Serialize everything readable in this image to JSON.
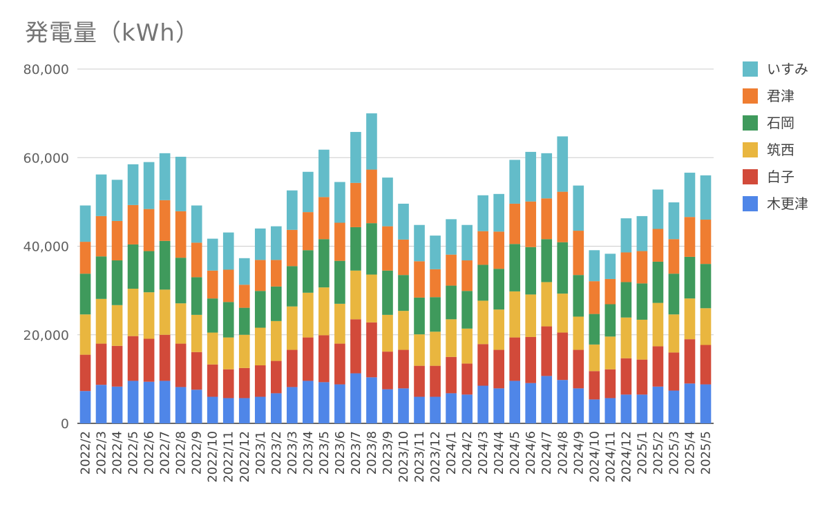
{
  "chart_data": {
    "type": "bar",
    "stacked": true,
    "title": "発電量（kWh）",
    "ylim": [
      0,
      80000
    ],
    "yticks": [
      "0",
      "20,000",
      "40,000",
      "60,000",
      "80,000"
    ],
    "ytick_values": [
      0,
      20000,
      40000,
      60000,
      80000
    ],
    "grid": true,
    "legend_position": "right",
    "categories": [
      "2022/2",
      "2022/3",
      "2022/4",
      "2022/5",
      "2022/6",
      "2022/7",
      "2022/8",
      "2022/9",
      "2022/10",
      "2022/11",
      "2022/12",
      "2023/1",
      "2023/2",
      "2023/3",
      "2023/4",
      "2023/5",
      "2023/6",
      "2023/7",
      "2023/8",
      "2023/9",
      "2023/10",
      "2023/11",
      "2023/12",
      "2024/1",
      "2024/2",
      "2024/3",
      "2024/4",
      "2024/5",
      "2024/6",
      "2024/7",
      "2024/8",
      "2024/9",
      "2024/10",
      "2024/11",
      "2024/12",
      "2025/1",
      "2025/2",
      "2025/3",
      "2025/4",
      "2025/5"
    ],
    "series": [
      {
        "name": "木更津",
        "color": "#4f86e8",
        "values": [
          7300,
          8700,
          8300,
          9600,
          9400,
          9600,
          8200,
          7600,
          6000,
          5700,
          5700,
          6000,
          6800,
          8200,
          9600,
          9300,
          8800,
          11300,
          10400,
          7700,
          7900,
          6000,
          6000,
          6800,
          6500,
          8500,
          7900,
          9600,
          9100,
          10700,
          9800,
          7900,
          5400,
          5700,
          6500,
          6500,
          8300,
          7400,
          9000,
          8800
        ]
      },
      {
        "name": "白子",
        "color": "#d24a3a",
        "values": [
          8200,
          9300,
          9200,
          10100,
          9700,
          10400,
          9800,
          8500,
          7300,
          6500,
          6800,
          7100,
          7300,
          8400,
          9800,
          10600,
          9200,
          12200,
          12400,
          8500,
          8700,
          7000,
          7000,
          8200,
          7000,
          9400,
          8700,
          9800,
          10400,
          11200,
          10700,
          8700,
          6400,
          6500,
          8200,
          7900,
          9100,
          8600,
          10000,
          8900
        ]
      },
      {
        "name": "筑西",
        "color": "#e9b63f",
        "values": [
          9100,
          10100,
          9200,
          10700,
          10500,
          10200,
          9100,
          8400,
          7200,
          7200,
          7500,
          8500,
          9000,
          9800,
          10100,
          10800,
          9000,
          11000,
          10800,
          8300,
          8800,
          7100,
          7700,
          8500,
          7900,
          9800,
          9100,
          10400,
          9600,
          10000,
          8800,
          7500,
          6000,
          7400,
          9200,
          9000,
          9800,
          8600,
          9200,
          8300
        ]
      },
      {
        "name": "石岡",
        "color": "#3f9a5c",
        "values": [
          9200,
          9600,
          10100,
          10000,
          9300,
          11000,
          10300,
          8500,
          7700,
          8000,
          6100,
          8300,
          7800,
          9100,
          9600,
          10900,
          9700,
          9800,
          11600,
          10000,
          8100,
          8300,
          7800,
          7600,
          8500,
          8100,
          9200,
          10700,
          10700,
          9700,
          11600,
          9400,
          6900,
          7300,
          8000,
          8200,
          9300,
          9200,
          9400,
          10000
        ]
      },
      {
        "name": "君津",
        "color": "#ef7d31",
        "values": [
          7200,
          9100,
          8900,
          8900,
          9500,
          9200,
          10500,
          7800,
          6300,
          7300,
          5200,
          7000,
          6000,
          8200,
          8600,
          9500,
          8600,
          10000,
          12100,
          10000,
          8000,
          8200,
          6300,
          7000,
          6900,
          7600,
          8400,
          9100,
          10300,
          9200,
          11400,
          10000,
          7400,
          5700,
          6700,
          7300,
          7400,
          7800,
          9000,
          10000
        ]
      },
      {
        "name": "いすみ",
        "color": "#63bcc9",
        "values": [
          8200,
          9400,
          9300,
          9200,
          10600,
          10600,
          12300,
          8400,
          7200,
          8400,
          6000,
          7100,
          7600,
          8900,
          9100,
          10700,
          9200,
          11500,
          12700,
          11000,
          8100,
          8200,
          7600,
          8000,
          8000,
          8100,
          8500,
          9900,
          11200,
          10200,
          12500,
          10200,
          7000,
          5700,
          7700,
          7900,
          8900,
          8300,
          10000,
          10000
        ]
      }
    ]
  }
}
